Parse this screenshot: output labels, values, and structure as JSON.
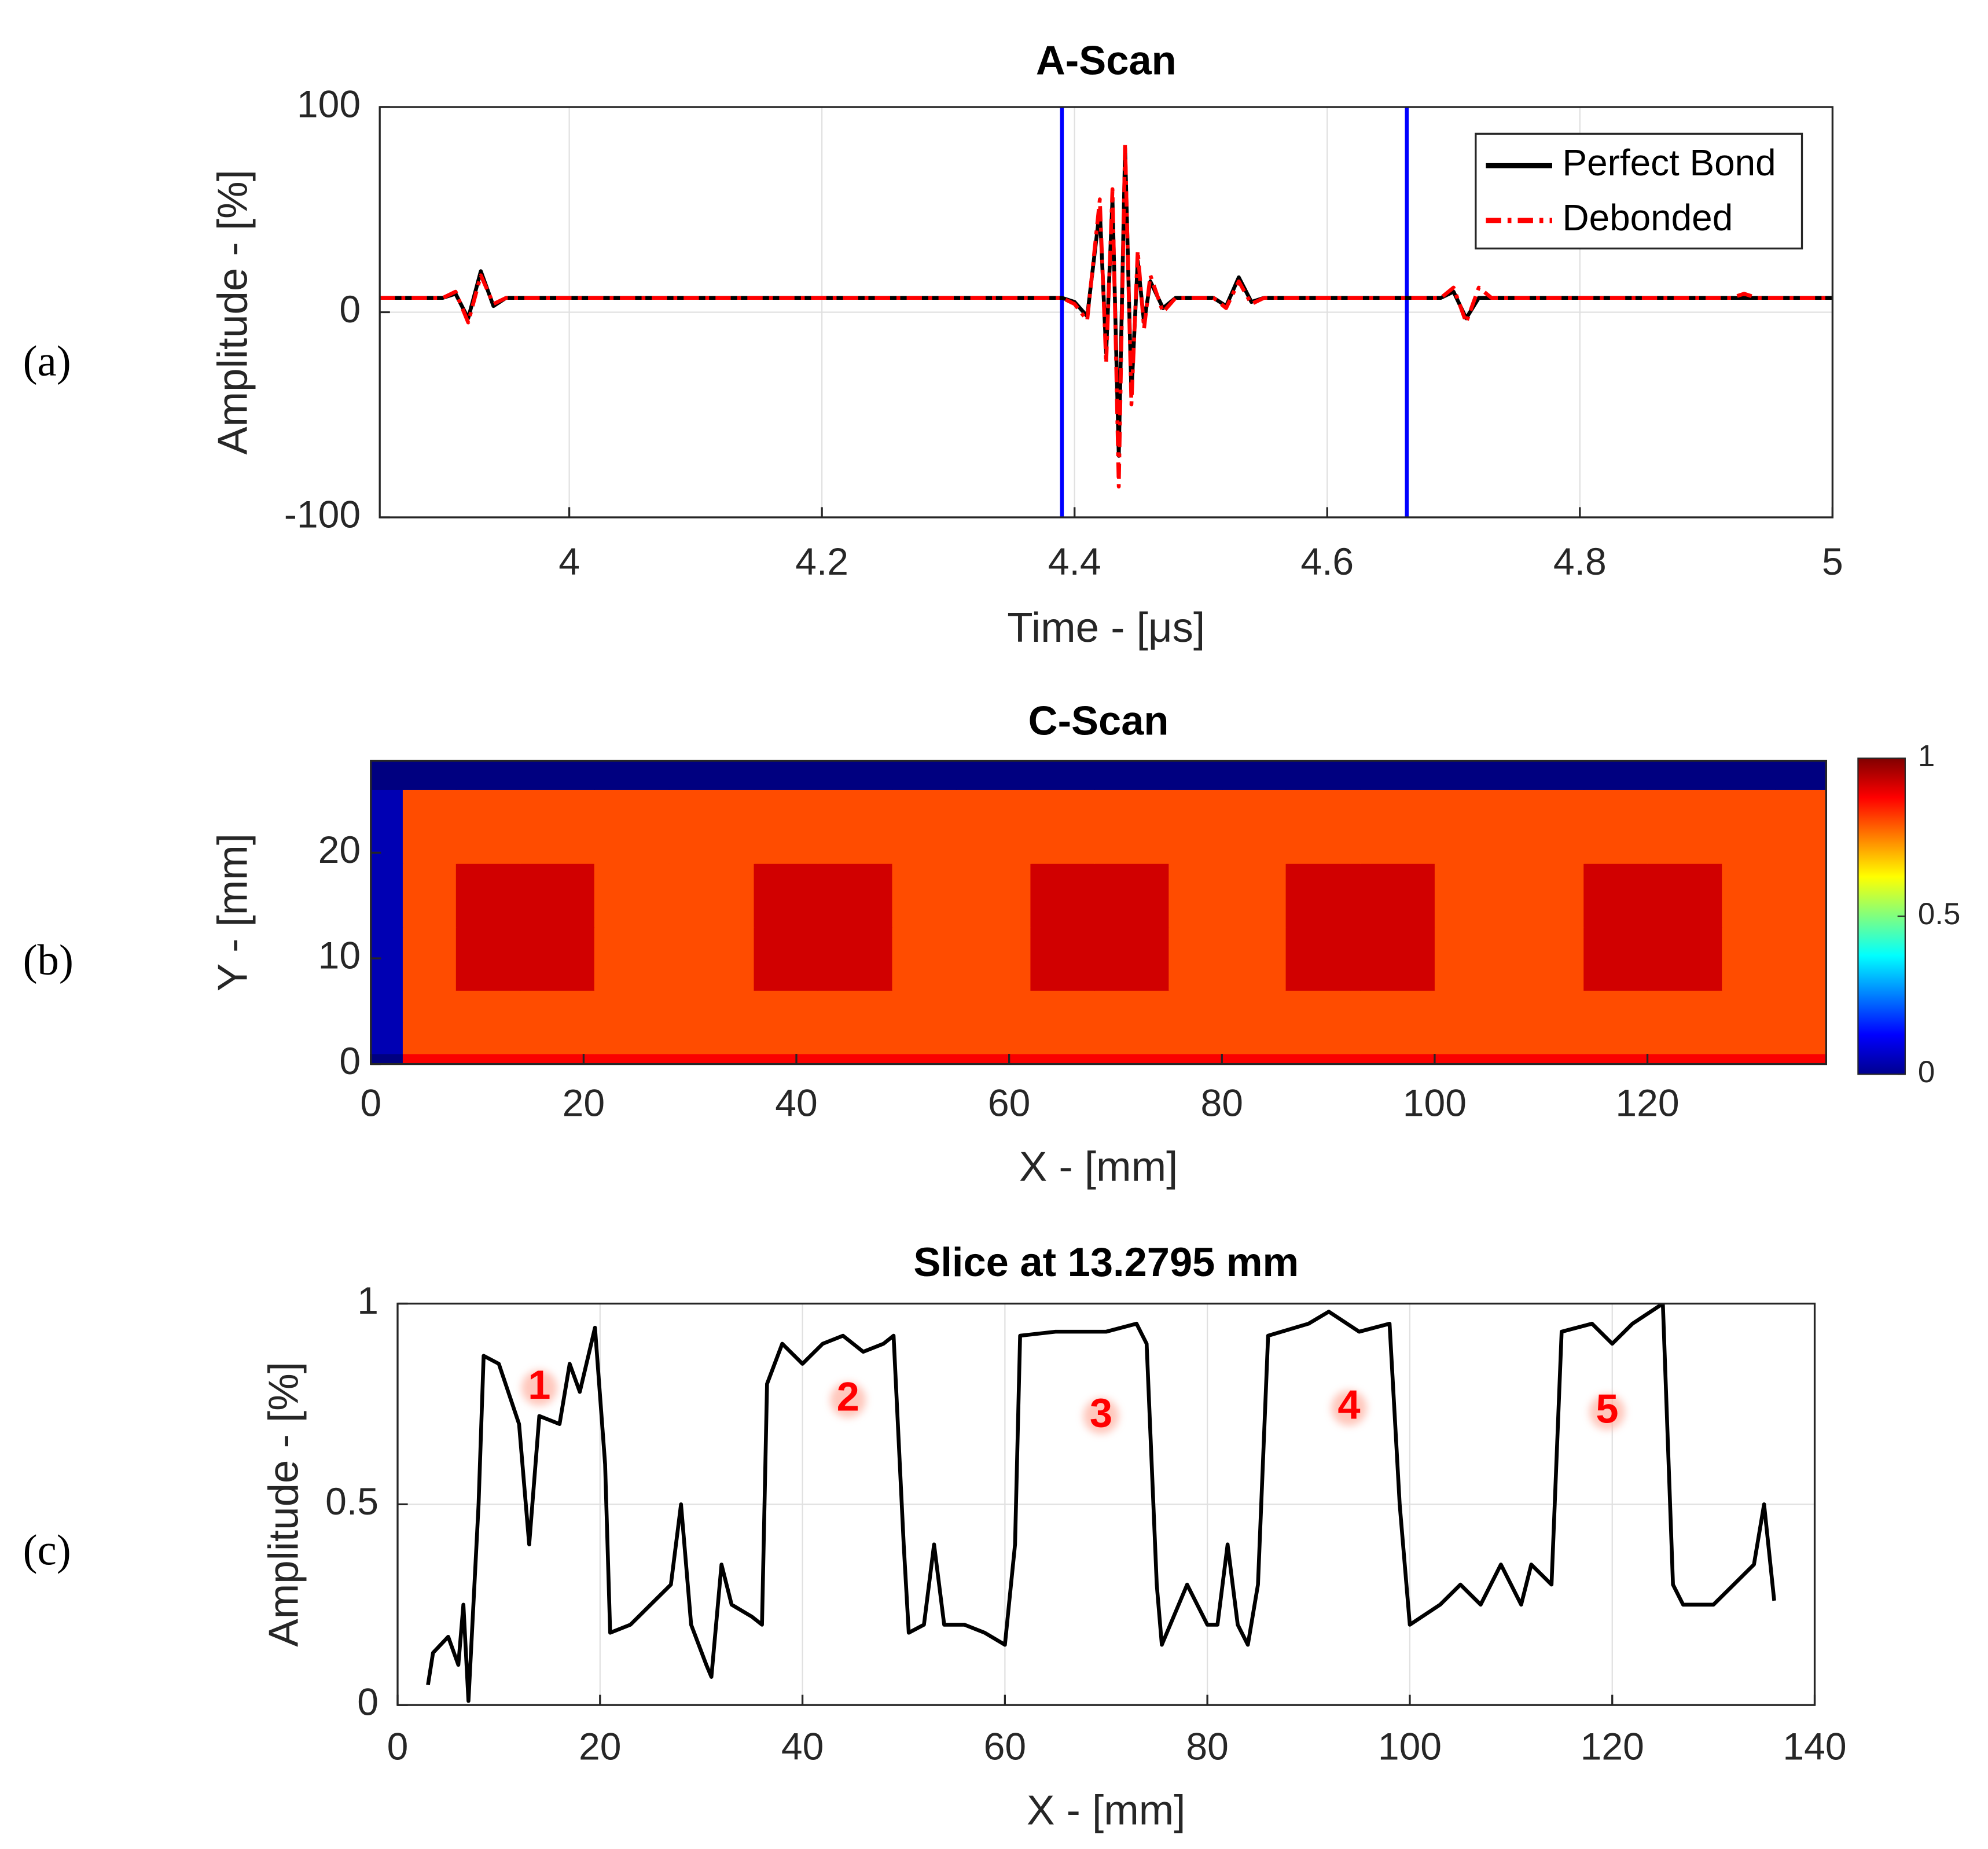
{
  "chart_data": [
    {
      "type": "line",
      "panel": "(a)",
      "title": "A-Scan",
      "xlabel": "Time - [μs]",
      "ylabel": "Amplitude - [%]",
      "xlim": [
        3.85,
        5
      ],
      "ylim": [
        -100,
        100
      ],
      "xticks": [
        4,
        4.2,
        4.4,
        4.6,
        4.8,
        5
      ],
      "yticks": [
        -100,
        0,
        100
      ],
      "grid": true,
      "legend": "upper right",
      "x": [
        3.85,
        3.9,
        3.91,
        3.92,
        3.93,
        3.94,
        3.95,
        4.38,
        4.39,
        4.4,
        4.41,
        4.42,
        4.425,
        4.43,
        4.435,
        4.44,
        4.445,
        4.45,
        4.455,
        4.46,
        4.47,
        4.48,
        4.51,
        4.52,
        4.53,
        4.54,
        4.55,
        4.69,
        4.7,
        4.71,
        4.72,
        4.73,
        4.92,
        4.93,
        4.94,
        5.0
      ],
      "series": [
        {
          "name": "Perfect Bond",
          "color": "#000000",
          "dash": "solid",
          "values": [
            7,
            7,
            9,
            -3,
            20,
            3,
            7,
            7,
            7,
            5,
            -2,
            50,
            -20,
            55,
            -70,
            80,
            -40,
            25,
            -5,
            15,
            2,
            7,
            7,
            3,
            17,
            5,
            7,
            7,
            10,
            -3,
            7,
            7,
            7,
            7,
            7,
            7
          ]
        },
        {
          "name": "Debonded",
          "color": "#ff0000",
          "dash": "dashdot",
          "values": [
            7,
            7,
            10,
            -5,
            18,
            4,
            7,
            7,
            7,
            4,
            -4,
            55,
            -25,
            60,
            -85,
            82,
            -45,
            30,
            -8,
            18,
            0,
            7,
            7,
            2,
            15,
            4,
            7,
            7,
            12,
            -5,
            12,
            7,
            7,
            9,
            7,
            7
          ]
        }
      ],
      "gates": {
        "color": "#0000ff",
        "values": [
          4.39,
          4.663
        ]
      }
    },
    {
      "type": "heatmap",
      "panel": "(b)",
      "title": "C-Scan",
      "xlabel": "X - [mm]",
      "ylabel": "Y - [mm]",
      "xlim": [
        0,
        136.8
      ],
      "ylim": [
        0,
        28.7
      ],
      "xticks": [
        0,
        20,
        40,
        60,
        80,
        100,
        120
      ],
      "yticks": [
        0,
        10,
        20
      ],
      "colormap": "jet",
      "clim": [
        0,
        1
      ],
      "cticks": [
        0,
        0.5,
        1
      ],
      "x_edges": [
        0,
        3,
        8,
        14,
        21,
        28,
        36,
        42,
        49,
        55,
        62,
        68,
        75,
        80,
        86,
        93,
        100,
        107,
        114,
        120,
        127,
        132,
        136.8
      ],
      "y_edges": [
        0,
        1,
        4,
        7,
        13,
        19,
        22,
        26,
        28.7
      ],
      "values": [
        [
          0,
          0.88,
          0.88,
          0.88,
          0.88,
          0.88,
          0.88,
          0.88,
          0.88,
          0.88,
          0.88,
          0.88,
          0.88,
          0.88,
          0.88,
          0.88,
          0.88,
          0.88,
          0.88,
          0.88,
          0.88,
          0.88
        ],
        [
          0.05,
          0.8,
          0.8,
          0.8,
          0.8,
          0.8,
          0.8,
          0.8,
          0.8,
          0.8,
          0.8,
          0.8,
          0.8,
          0.8,
          0.8,
          0.8,
          0.8,
          0.8,
          0.8,
          0.8,
          0.8,
          0.8
        ],
        [
          0.05,
          0.8,
          0.8,
          0.8,
          0.8,
          0.8,
          0.8,
          0.8,
          0.8,
          0.8,
          0.8,
          0.8,
          0.8,
          0.8,
          0.8,
          0.8,
          0.8,
          0.8,
          0.8,
          0.8,
          0.8,
          0.8
        ],
        [
          0.05,
          0.8,
          0.92,
          0.92,
          0.8,
          0.8,
          0.92,
          0.92,
          0.8,
          0.8,
          0.92,
          0.92,
          0.8,
          0.8,
          0.92,
          0.92,
          0.8,
          0.8,
          0.92,
          0.92,
          0.8,
          0.8
        ],
        [
          0.05,
          0.8,
          0.92,
          0.92,
          0.8,
          0.8,
          0.92,
          0.92,
          0.8,
          0.8,
          0.92,
          0.92,
          0.8,
          0.8,
          0.92,
          0.92,
          0.8,
          0.8,
          0.92,
          0.92,
          0.8,
          0.8
        ],
        [
          0.05,
          0.8,
          0.8,
          0.8,
          0.8,
          0.8,
          0.8,
          0.8,
          0.8,
          0.8,
          0.8,
          0.8,
          0.8,
          0.8,
          0.8,
          0.8,
          0.8,
          0.8,
          0.8,
          0.8,
          0.8,
          0.8
        ],
        [
          0.05,
          0.8,
          0.8,
          0.8,
          0.8,
          0.8,
          0.8,
          0.8,
          0.8,
          0.8,
          0.8,
          0.8,
          0.8,
          0.8,
          0.8,
          0.8,
          0.8,
          0.8,
          0.8,
          0.8,
          0.8,
          0.8
        ],
        [
          0,
          0,
          0,
          0,
          0,
          0,
          0,
          0,
          0,
          0,
          0,
          0,
          0,
          0,
          0,
          0,
          0,
          0,
          0,
          0,
          0,
          0
        ]
      ]
    },
    {
      "type": "line",
      "panel": "(c)",
      "title": "Slice at 13.2795 mm",
      "xlabel": "X - [mm]",
      "ylabel": "Amplitude - [%]",
      "xlim": [
        0,
        140
      ],
      "ylim": [
        0,
        1
      ],
      "xticks": [
        0,
        20,
        40,
        60,
        80,
        100,
        120,
        140
      ],
      "yticks": [
        0,
        0.5,
        1
      ],
      "grid": true,
      "x": [
        3,
        3.5,
        5,
        6,
        6.5,
        7,
        8,
        8.5,
        10,
        12,
        13,
        14,
        16,
        17,
        18,
        19.5,
        20.5,
        21,
        23,
        25,
        27,
        28,
        29,
        30.5,
        31,
        32,
        33,
        35,
        36,
        36.5,
        38,
        40,
        42,
        44,
        46,
        48,
        49,
        50,
        50.5,
        52,
        53,
        54,
        56,
        58,
        60,
        61,
        61.5,
        65,
        70,
        73,
        74,
        75,
        75.5,
        78,
        80,
        81,
        82,
        83,
        84,
        85,
        86,
        90,
        92,
        95,
        98,
        99,
        100,
        103,
        105,
        107,
        109,
        111,
        112,
        114,
        115,
        118,
        120,
        122,
        125,
        126,
        127,
        130,
        132,
        134,
        135,
        136
      ],
      "series": [
        {
          "name": "Slice",
          "color": "#000000",
          "dash": "solid",
          "values": [
            0.05,
            0.13,
            0.17,
            0.1,
            0.25,
            0.01,
            0.5,
            0.87,
            0.85,
            0.7,
            0.4,
            0.72,
            0.7,
            0.85,
            0.78,
            0.94,
            0.6,
            0.18,
            0.2,
            0.25,
            0.3,
            0.5,
            0.2,
            0.1,
            0.07,
            0.35,
            0.25,
            0.22,
            0.2,
            0.8,
            0.9,
            0.85,
            0.9,
            0.92,
            0.88,
            0.9,
            0.92,
            0.4,
            0.18,
            0.2,
            0.4,
            0.2,
            0.2,
            0.18,
            0.15,
            0.4,
            0.92,
            0.93,
            0.93,
            0.95,
            0.9,
            0.3,
            0.15,
            0.3,
            0.2,
            0.2,
            0.4,
            0.2,
            0.15,
            0.3,
            0.92,
            0.95,
            0.98,
            0.93,
            0.95,
            0.5,
            0.2,
            0.25,
            0.3,
            0.25,
            0.35,
            0.25,
            0.35,
            0.3,
            0.93,
            0.95,
            0.9,
            0.95,
            1.0,
            0.3,
            0.25,
            0.25,
            0.3,
            0.35,
            0.5,
            0.26
          ]
        }
      ],
      "annotations": [
        {
          "text": "1",
          "x": 14,
          "y": 0.79
        },
        {
          "text": "2",
          "x": 44.5,
          "y": 0.76
        },
        {
          "text": "3",
          "x": 69.5,
          "y": 0.72
        },
        {
          "text": "4",
          "x": 94,
          "y": 0.74
        },
        {
          "text": "5",
          "x": 119.5,
          "y": 0.73
        }
      ],
      "annotation_color": "#ff0000"
    }
  ]
}
